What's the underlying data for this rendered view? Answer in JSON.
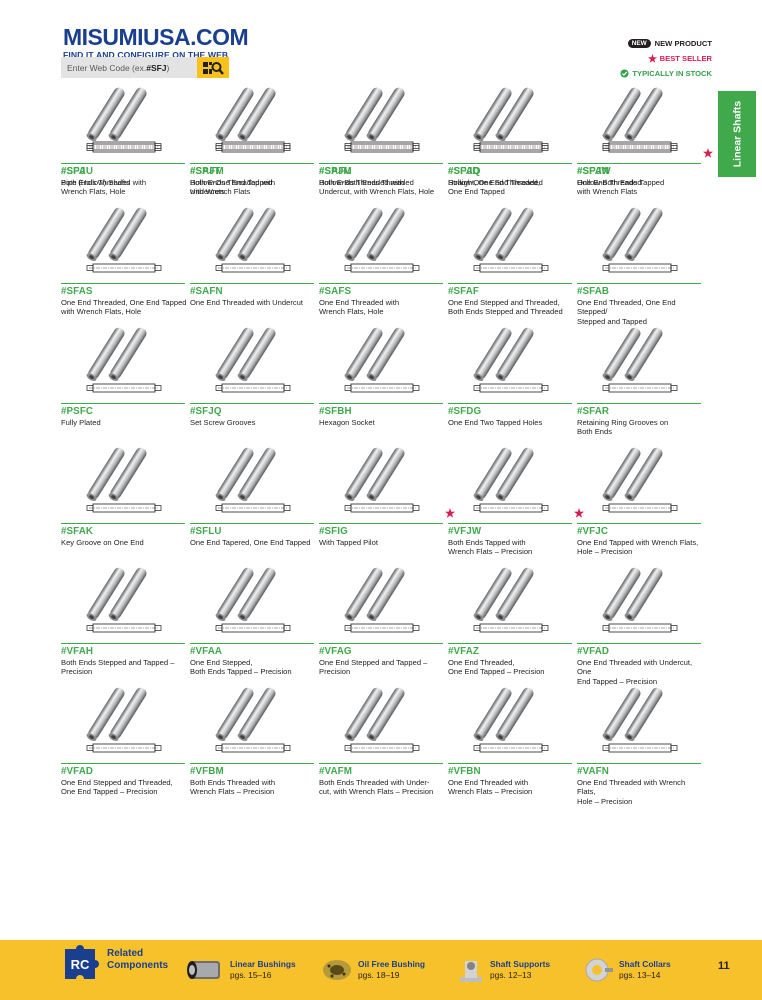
{
  "header": {
    "brand": "MISUMIUSA.COM",
    "tagline": "FIND IT AND CONFIGURE ON THE WEB",
    "search_prefix": "Enter Web Code (ex. ",
    "search_code": "#SFJ",
    "search_suffix": ")"
  },
  "legend": {
    "new_badge": "NEW",
    "new_label": "NEW PRODUCT",
    "best_label": "BEST SELLER",
    "stock_label": "TYPICALLY IN STOCK"
  },
  "side_tab": "Linear Shafts",
  "products": [
    {
      "code": "#SFAU",
      "desc": "Both Ends Threaded with\nWrench Flats, Hole",
      "star": false
    },
    {
      "code": "#SAFM",
      "desc": "Both Ends Threaded with\nUndercuts",
      "star": false
    },
    {
      "code": "#SAFU",
      "desc": "Both Ends Threaded with\nUndercut, with Wrench Flats, Hole",
      "star": false
    },
    {
      "code": "#SFAQ",
      "desc": "Straight, One End Threaded",
      "star": false
    },
    {
      "code": "#SFAN",
      "desc": "One End Threaded",
      "star": true
    },
    {
      "code": "#SFAS",
      "desc": "One End Threaded, One End Tapped\nwith Wrench Flats, Hole",
      "star": false
    },
    {
      "code": "#SAFN",
      "desc": "One End Threaded with Undercut",
      "star": false
    },
    {
      "code": "#SAFS",
      "desc": "One End Threaded with\nWrench Flats, Hole",
      "star": false
    },
    {
      "code": "#SFAF",
      "desc": "One End Stepped and Threaded,\nBoth Ends Stepped and Threaded",
      "star": false
    },
    {
      "code": "#SFAB",
      "desc": "One End Threaded, One End Stepped/\nStepped and Tapped",
      "star": false
    },
    {
      "code": "#PSFC",
      "desc": "Fully Plated",
      "star": false
    },
    {
      "code": "#SFJQ",
      "desc": "Set Screw Grooves",
      "star": false
    },
    {
      "code": "#SFBH",
      "desc": "Hexagon Socket",
      "star": false
    },
    {
      "code": "#SFDG",
      "desc": "One End Two Tapped Holes",
      "star": false
    },
    {
      "code": "#SFAR",
      "desc": "Retaining Ring Grooves on\nBoth Ends",
      "star": false
    },
    {
      "code": "#SFAK",
      "desc": "Key Groove on One End",
      "star": false
    },
    {
      "code": "#SFLU",
      "desc": "One End Tapered, One End Tapped",
      "star": false
    },
    {
      "code": "#SFIG",
      "desc": "With Tapped Pilot",
      "star": true
    },
    {
      "code": "#VFJW",
      "desc": "Both Ends Tapped with\nWrench Flats – Precision",
      "star": true
    },
    {
      "code": "#VFJC",
      "desc": "One End Tapped with Wrench Flats,\nHole – Precision",
      "star": false
    },
    {
      "code": "#VFAH",
      "desc": "Both Ends Stepped and Tapped –\nPrecision",
      "star": false
    },
    {
      "code": "#VFAA",
      "desc": "One End Stepped,\nBoth Ends Tapped – Precision",
      "star": false
    },
    {
      "code": "#VFAG",
      "desc": "One End Stepped and Tapped –\nPrecision",
      "star": false
    },
    {
      "code": "#VFAZ",
      "desc": "One End Threaded,\nOne End Tapped – Precision",
      "star": false
    },
    {
      "code": "#VFAD",
      "desc": "One End Threaded with Undercut, One\nEnd Tapped – Precision",
      "star": false
    },
    {
      "code": "#VFAD",
      "desc": "One End Stepped and Threaded,\nOne End Tapped – Precision",
      "star": false
    },
    {
      "code": "#VFBM",
      "desc": "Both Ends Threaded with\nWrench Flats – Precision",
      "star": false
    },
    {
      "code": "#VAFM",
      "desc": "Both Ends Threaded with Under-\ncut, with Wrench Flats – Precision",
      "star": false
    },
    {
      "code": "#VFBN",
      "desc": "One End Threaded with\nWrench Flats – Precision",
      "star": false
    },
    {
      "code": "#VAFN",
      "desc": "One End Threaded with Wrench Flats,\nHole – Precision",
      "star": false
    },
    {
      "code": "#SPJ",
      "desc": "Pipe (Hollow) Shafts",
      "star": false
    },
    {
      "code": "#SPJT",
      "desc": "Hollow-One End Tapped\nwith Wrench Flats",
      "star": false
    },
    {
      "code": "#SPJM",
      "desc": "Hollow-Both Ends Threaded",
      "star": false
    },
    {
      "code": "#SPJD",
      "desc": "Hollow-One End Threaded,\nOne End Tapped",
      "star": false
    },
    {
      "code": "#SPJW",
      "desc": "Hollow-Both Ends Tapped\nwith Wrench Flats",
      "star": false
    }
  ],
  "footer": {
    "rc_badge": "RC",
    "rc_line1": "Related",
    "rc_line2": "Components",
    "items": [
      {
        "title": "Linear Bushings",
        "pages": "pgs. 15–16"
      },
      {
        "title": "Oil Free Bushing",
        "pages": "pgs. 18–19"
      },
      {
        "title": "Shaft Supports",
        "pages": "pgs. 12–13"
      },
      {
        "title": "Shaft Collars",
        "pages": "pgs. 13–14"
      }
    ],
    "page_number": "11"
  },
  "colors": {
    "green": "#3fa94b",
    "blue": "#1a3f8f",
    "yellow": "#f7c12b",
    "red": "#d71e50"
  }
}
